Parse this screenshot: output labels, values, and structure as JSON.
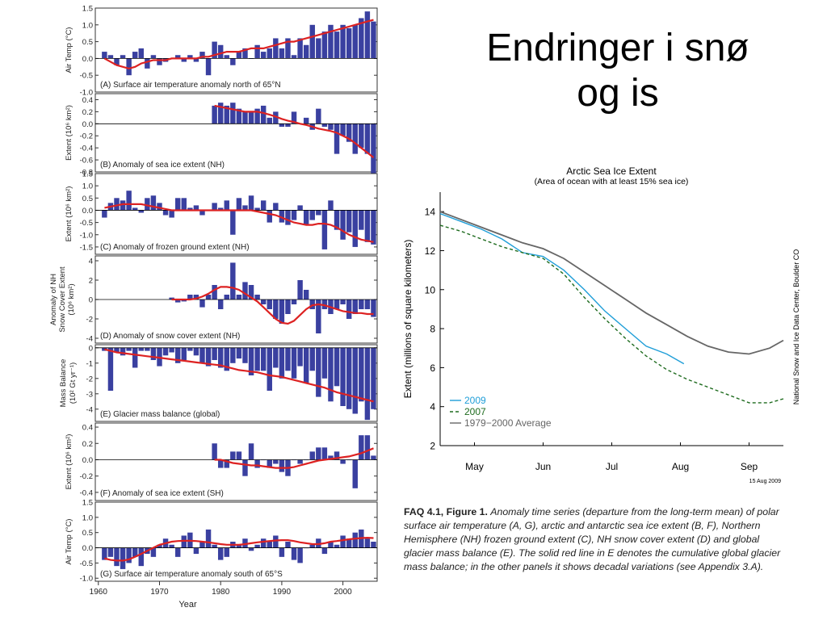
{
  "slide": {
    "title": "Endringer i snø\nog is"
  },
  "caption": {
    "lead": "FAQ 4.1, Figure 1.",
    "body": "Anomaly time series (departure from the long-term mean) of polar surface air temperature (A, G), arctic and antarctic sea ice extent (B, F), Northern Hemisphere (NH) frozen ground extent (C), NH snow cover extent (D) and global glacier mass balance (E). The solid red line in E denotes the cumulative global glacier mass balance; in the other panels it shows decadal variations (see Appendix 3.A)."
  },
  "colors": {
    "bar": "#3a40a0",
    "smooth": "#dd2222",
    "line_2009": "#1f9ed8",
    "line_2007": "#1e6b1e",
    "line_average": "#666666",
    "panel_border": "#333333"
  },
  "chart_data": [
    {
      "type": "bar",
      "id": "A",
      "annotation": "(A) Surface air temperature anomaly north of 65°N",
      "ylabel": "Air Temp (°C)",
      "ylim": [
        -1.0,
        1.5
      ],
      "yticks": [
        "1.5",
        "1.0",
        "0.5",
        "0.0",
        "-0.5",
        "-1.0"
      ],
      "ytick_values": [
        1.5,
        1.0,
        0.5,
        0.0,
        -0.5,
        -1.0
      ],
      "x_start": 1961,
      "x_end": 2005,
      "values": [
        0.2,
        0.1,
        -0.2,
        0.1,
        -0.5,
        0.2,
        0.3,
        -0.3,
        0.1,
        -0.2,
        -0.1,
        0.0,
        0.1,
        -0.1,
        0.1,
        -0.1,
        0.2,
        -0.5,
        0.5,
        0.4,
        0.1,
        -0.2,
        0.2,
        0.3,
        0.0,
        0.4,
        0.2,
        0.3,
        0.6,
        0.3,
        0.6,
        0.1,
        0.6,
        0.4,
        1.0,
        0.6,
        0.8,
        1.0,
        0.8,
        1.0,
        0.9,
        1.0,
        1.2,
        1.4,
        1.1
      ],
      "smooth": [
        0.0,
        -0.1,
        -0.2,
        -0.25,
        -0.3,
        -0.25,
        -0.15,
        -0.1,
        -0.05,
        -0.05,
        -0.05,
        0.0,
        0.0,
        0.0,
        0.0,
        0.0,
        0.05,
        0.05,
        0.1,
        0.15,
        0.2,
        0.2,
        0.2,
        0.25,
        0.3,
        0.3,
        0.3,
        0.35,
        0.4,
        0.45,
        0.5,
        0.5,
        0.55,
        0.6,
        0.65,
        0.7,
        0.75,
        0.8,
        0.85,
        0.9,
        0.95,
        1.0,
        1.05,
        1.1,
        1.15
      ]
    },
    {
      "type": "bar",
      "id": "B",
      "annotation": "(B) Anomaly of sea ice extent (NH)",
      "ylabel": "Extent (10⁶ km²)",
      "ylim": [
        -0.8,
        0.5
      ],
      "yticks": [
        "0.4",
        "0.2",
        "0.0",
        "-0.2",
        "-0.4",
        "-0.6",
        "-0.8"
      ],
      "ytick_values": [
        0.4,
        0.2,
        0.0,
        -0.2,
        -0.4,
        -0.6,
        -0.8
      ],
      "x_start": 1979,
      "x_end": 2005,
      "values": [
        0.3,
        0.35,
        0.3,
        0.35,
        0.25,
        0.2,
        0.2,
        0.25,
        0.3,
        0.1,
        0.2,
        -0.05,
        -0.05,
        0.2,
        0.0,
        0.1,
        -0.1,
        0.25,
        -0.05,
        -0.1,
        -0.5,
        -0.2,
        -0.3,
        -0.5,
        -0.4,
        -0.5,
        -0.85
      ],
      "smooth": [
        0.3,
        0.28,
        0.26,
        0.24,
        0.22,
        0.2,
        0.2,
        0.2,
        0.18,
        0.15,
        0.12,
        0.08,
        0.05,
        0.03,
        0.0,
        -0.02,
        -0.05,
        -0.08,
        -0.1,
        -0.12,
        -0.15,
        -0.2,
        -0.25,
        -0.32,
        -0.4,
        -0.48,
        -0.56
      ]
    },
    {
      "type": "bar",
      "id": "C",
      "annotation": "(C) Anomaly of frozen ground extent (NH)",
      "ylabel": "Extent (10⁶ km²)",
      "ylim": [
        -1.8,
        1.5
      ],
      "yticks": [
        "1.5",
        "1.0",
        "0.5",
        "0.0",
        "-0.5",
        "-1.0",
        "-1.5"
      ],
      "ytick_values": [
        1.5,
        1.0,
        0.5,
        0.0,
        -0.5,
        -1.0,
        -1.5
      ],
      "x_start": 1961,
      "x_end": 2005,
      "values": [
        -0.3,
        0.3,
        0.5,
        0.4,
        0.8,
        0.1,
        -0.1,
        0.5,
        0.6,
        0.3,
        -0.2,
        -0.3,
        0.5,
        0.5,
        0.1,
        0.2,
        -0.2,
        0.0,
        0.3,
        0.1,
        0.4,
        -1.0,
        0.5,
        0.2,
        0.6,
        0.1,
        0.4,
        -0.5,
        0.3,
        -0.5,
        -0.6,
        -0.4,
        0.2,
        -0.6,
        -0.4,
        -0.2,
        -1.6,
        0.4,
        -0.8,
        -1.2,
        -0.9,
        -1.5,
        -0.8,
        -1.3,
        -1.4
      ],
      "smooth": [
        0.1,
        0.15,
        0.2,
        0.25,
        0.25,
        0.25,
        0.25,
        0.2,
        0.15,
        0.1,
        0.05,
        0.0,
        0.0,
        0.0,
        0.0,
        0.0,
        0.0,
        0.0,
        0.0,
        0.0,
        0.0,
        0.0,
        0.0,
        0.0,
        0.0,
        -0.05,
        -0.1,
        -0.15,
        -0.2,
        -0.3,
        -0.4,
        -0.5,
        -0.55,
        -0.6,
        -0.6,
        -0.55,
        -0.55,
        -0.6,
        -0.7,
        -0.85,
        -1.0,
        -1.1,
        -1.2,
        -1.25,
        -1.3
      ]
    },
    {
      "type": "bar",
      "id": "D",
      "annotation": "(D) Anomaly of snow cover extent (NH)",
      "ylabel": "Anomaly of NH Snow Cover Extent (10⁶ km²)",
      "ylim": [
        -4.5,
        4.5
      ],
      "yticks": [
        "4",
        "2",
        "0",
        "-2",
        "-4"
      ],
      "ytick_values": [
        4,
        2,
        0,
        -2,
        -4
      ],
      "x_start": 1972,
      "x_end": 2005,
      "values": [
        0.2,
        -0.3,
        -0.2,
        0.5,
        0.5,
        -0.8,
        0.5,
        1.5,
        -1.0,
        0.5,
        3.8,
        0.5,
        1.8,
        1.5,
        0.5,
        -0.5,
        -1.0,
        -2.0,
        -2.5,
        -1.5,
        -0.5,
        2.0,
        1.0,
        -1.0,
        -3.5,
        -1.0,
        -1.5,
        -1.0,
        -0.5,
        -2.0,
        -1.5,
        -1.0,
        -1.0,
        -1.8
      ],
      "smooth": [
        0.0,
        0.0,
        0.0,
        0.0,
        0.1,
        0.3,
        0.6,
        1.0,
        1.3,
        1.3,
        1.2,
        1.0,
        0.6,
        0.2,
        -0.2,
        -0.8,
        -1.4,
        -2.0,
        -2.4,
        -2.5,
        -2.2,
        -1.6,
        -1.0,
        -0.6,
        -0.5,
        -0.6,
        -0.8,
        -1.0,
        -1.2,
        -1.3,
        -1.4,
        -1.4,
        -1.5,
        -1.5
      ]
    },
    {
      "type": "bar",
      "id": "E",
      "annotation": "(E) Glacier mass balance (global)",
      "ylabel": "Mass Balance (10² Gt yr⁻¹)",
      "ylim": [
        -4.8,
        0.2
      ],
      "yticks": [
        "0",
        "-1",
        "-2",
        "-3",
        "-4"
      ],
      "ytick_values": [
        0,
        -1,
        -2,
        -3,
        -4
      ],
      "x_start": 1961,
      "x_end": 2005,
      "values": [
        -0.2,
        -2.8,
        -0.3,
        -0.5,
        -0.2,
        -1.3,
        -0.2,
        -0.2,
        -0.8,
        -1.2,
        -0.5,
        -0.3,
        -1.0,
        -0.8,
        -0.2,
        -0.5,
        -1.0,
        -1.2,
        -0.8,
        -1.3,
        -1.5,
        -1.0,
        -0.7,
        -1.0,
        -1.8,
        -1.5,
        -1.5,
        -2.8,
        -1.3,
        -2.0,
        -1.5,
        -2.0,
        -1.2,
        -2.3,
        -1.5,
        -3.2,
        -2.0,
        -3.5,
        -2.5,
        -3.8,
        -4.0,
        -4.3,
        -3.5,
        -4.7,
        -4.0
      ],
      "smooth": [
        -0.1,
        -0.2,
        -0.3,
        -0.35,
        -0.4,
        -0.45,
        -0.5,
        -0.55,
        -0.6,
        -0.65,
        -0.7,
        -0.75,
        -0.8,
        -0.85,
        -0.9,
        -0.95,
        -1.0,
        -1.05,
        -1.1,
        -1.15,
        -1.25,
        -1.35,
        -1.45,
        -1.5,
        -1.55,
        -1.6,
        -1.7,
        -1.8,
        -1.85,
        -1.9,
        -2.0,
        -2.1,
        -2.2,
        -2.3,
        -2.4,
        -2.5,
        -2.6,
        -2.75,
        -2.9,
        -3.0,
        -3.1,
        -3.2,
        -3.3,
        -3.4,
        -3.5
      ]
    },
    {
      "type": "bar",
      "id": "F",
      "annotation": "(F) Anomaly of sea ice extent (SH)",
      "ylabel": "Extent (10⁶ km²)",
      "ylim": [
        -0.5,
        0.45
      ],
      "yticks": [
        "0.4",
        "0.2",
        "0.0",
        "-0.2",
        "-0.4"
      ],
      "ytick_values": [
        0.4,
        0.2,
        0.0,
        -0.2,
        -0.4
      ],
      "x_start": 1979,
      "x_end": 2005,
      "values": [
        0.2,
        -0.1,
        -0.1,
        0.1,
        0.1,
        -0.2,
        0.2,
        -0.1,
        0.0,
        -0.1,
        -0.05,
        -0.15,
        -0.2,
        0.0,
        -0.05,
        0.0,
        0.1,
        0.15,
        0.15,
        0.05,
        0.1,
        -0.05,
        0.0,
        -0.35,
        0.3,
        0.3,
        0.05
      ],
      "smooth": [
        0.0,
        0.0,
        -0.02,
        -0.04,
        -0.05,
        -0.06,
        -0.07,
        -0.07,
        -0.08,
        -0.09,
        -0.1,
        -0.1,
        -0.1,
        -0.09,
        -0.07,
        -0.05,
        -0.03,
        -0.01,
        0.0,
        0.01,
        0.02,
        0.03,
        0.04,
        0.06,
        0.08,
        0.11,
        0.14
      ]
    },
    {
      "type": "bar",
      "id": "G",
      "annotation": "(G) Surface air temperature anomaly south of 65°S",
      "ylabel": "Air Temp (°C)",
      "ylim": [
        -1.1,
        1.5
      ],
      "yticks": [
        "1.5",
        "1.0",
        "0.5",
        "0.0",
        "-0.5",
        "-1.0"
      ],
      "ytick_values": [
        1.5,
        1.0,
        0.5,
        0.0,
        -0.5,
        -1.0
      ],
      "x_start": 1961,
      "x_end": 2005,
      "values": [
        -0.4,
        -0.3,
        -0.6,
        -0.7,
        -0.5,
        -0.3,
        -0.6,
        -0.2,
        -0.3,
        0.1,
        0.3,
        0.1,
        -0.3,
        0.4,
        0.5,
        -0.2,
        0.2,
        0.6,
        0.1,
        -0.4,
        -0.3,
        0.2,
        0.1,
        0.3,
        -0.1,
        0.1,
        0.3,
        0.2,
        0.4,
        -0.3,
        0.2,
        -0.4,
        -0.5,
        0.0,
        0.1,
        0.3,
        -0.2,
        0.2,
        0.1,
        0.4,
        0.3,
        0.5,
        0.6,
        0.3,
        0.2
      ],
      "smooth": [
        -0.35,
        -0.4,
        -0.42,
        -0.42,
        -0.38,
        -0.3,
        -0.2,
        -0.1,
        0.0,
        0.1,
        0.15,
        0.2,
        0.22,
        0.23,
        0.23,
        0.22,
        0.2,
        0.18,
        0.15,
        0.12,
        0.1,
        0.1,
        0.1,
        0.12,
        0.15,
        0.18,
        0.2,
        0.22,
        0.24,
        0.25,
        0.25,
        0.22,
        0.18,
        0.15,
        0.12,
        0.12,
        0.15,
        0.2,
        0.22,
        0.25,
        0.28,
        0.3,
        0.32,
        0.33,
        0.32
      ]
    }
  ],
  "left_xaxis": {
    "label": "Year",
    "ticks": [
      "1960",
      "1970",
      "1980",
      "1990",
      "2000"
    ],
    "tick_values": [
      1960,
      1970,
      1980,
      1990,
      2000
    ]
  },
  "arctic_chart": {
    "type": "line",
    "title": "Arctic Sea Ice Extent",
    "subtitle": "(Area of ocean with at least 15% sea ice)",
    "ylabel": "Extent (millions of square kilometers)",
    "ylim": [
      2,
      15
    ],
    "yticks": [
      "14",
      "12",
      "10",
      "8",
      "6",
      "4",
      "2"
    ],
    "ytick_values": [
      14,
      12,
      10,
      8,
      6,
      4,
      2
    ],
    "xlim": [
      0,
      5
    ],
    "xticks": [
      "May",
      "Jun",
      "Jul",
      "Aug",
      "Sep"
    ],
    "xtick_values": [
      0.5,
      1.5,
      2.5,
      3.5,
      4.5
    ],
    "legend": [
      "2009",
      "2007",
      "1979−2000 Average"
    ],
    "legend_position": "bottom-left",
    "side_label": "National Snow and Ice Data Center, Boulder CO",
    "date_stamp": "15 Aug 2009",
    "series": [
      {
        "name": "2009",
        "x": [
          0,
          0.3,
          0.6,
          0.9,
          1.2,
          1.5,
          1.8,
          2.1,
          2.4,
          2.7,
          3.0,
          3.3,
          3.55
        ],
        "values": [
          13.9,
          13.5,
          13.1,
          12.6,
          11.9,
          11.7,
          11.0,
          10.0,
          8.9,
          8.0,
          7.1,
          6.7,
          6.2
        ]
      },
      {
        "name": "2007",
        "x": [
          0,
          0.3,
          0.6,
          0.9,
          1.2,
          1.5,
          1.8,
          2.1,
          2.4,
          2.7,
          3.0,
          3.3,
          3.6,
          3.9,
          4.2,
          4.5,
          4.8,
          5.0
        ],
        "values": [
          13.3,
          13.0,
          12.6,
          12.2,
          11.9,
          11.6,
          10.8,
          9.6,
          8.5,
          7.5,
          6.6,
          5.9,
          5.4,
          5.0,
          4.6,
          4.2,
          4.2,
          4.4
        ]
      },
      {
        "name": "1979−2000 Average",
        "x": [
          0,
          0.3,
          0.6,
          0.9,
          1.2,
          1.5,
          1.8,
          2.1,
          2.4,
          2.7,
          3.0,
          3.3,
          3.6,
          3.9,
          4.2,
          4.5,
          4.8,
          5.0
        ],
        "values": [
          14.0,
          13.6,
          13.2,
          12.8,
          12.4,
          12.1,
          11.6,
          10.9,
          10.2,
          9.5,
          8.8,
          8.2,
          7.6,
          7.1,
          6.8,
          6.7,
          7.0,
          7.4
        ]
      }
    ]
  }
}
